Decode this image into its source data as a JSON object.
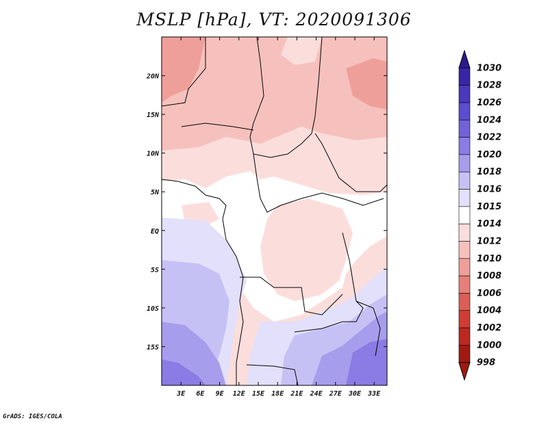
{
  "title": "MSLP [hPa], VT: 2020091306",
  "footer": "GrADS: IGES/COLA",
  "map": {
    "lon_range": [
      0,
      35
    ],
    "lat_range": [
      -20,
      25
    ],
    "lon_ticks": [
      "3E",
      "6E",
      "9E",
      "12E",
      "15E",
      "18E",
      "21E",
      "24E",
      "27E",
      "30E",
      "33E"
    ],
    "lat_ticks": [
      "20N",
      "15N",
      "10N",
      "5N",
      "EQ",
      "5S",
      "10S",
      "15S"
    ]
  },
  "colorbar": {
    "levels": [
      "1030",
      "1028",
      "1026",
      "1024",
      "1022",
      "1020",
      "1018",
      "1016",
      "1015",
      "1014",
      "1012",
      "1010",
      "1008",
      "1006",
      "1004",
      "1002",
      "1000",
      "998"
    ],
    "colors": [
      "#2a1a8c",
      "#3826a6",
      "#4a38bd",
      "#5c4ccf",
      "#7262da",
      "#8a7ce4",
      "#a79ded",
      "#c6c1f5",
      "#e2e0fb",
      "#ffffff",
      "#fbdedc",
      "#f6c1bd",
      "#ef9f9a",
      "#e67f79",
      "#db5e56",
      "#cf3d34",
      "#bd2820",
      "#a11a12"
    ]
  }
}
